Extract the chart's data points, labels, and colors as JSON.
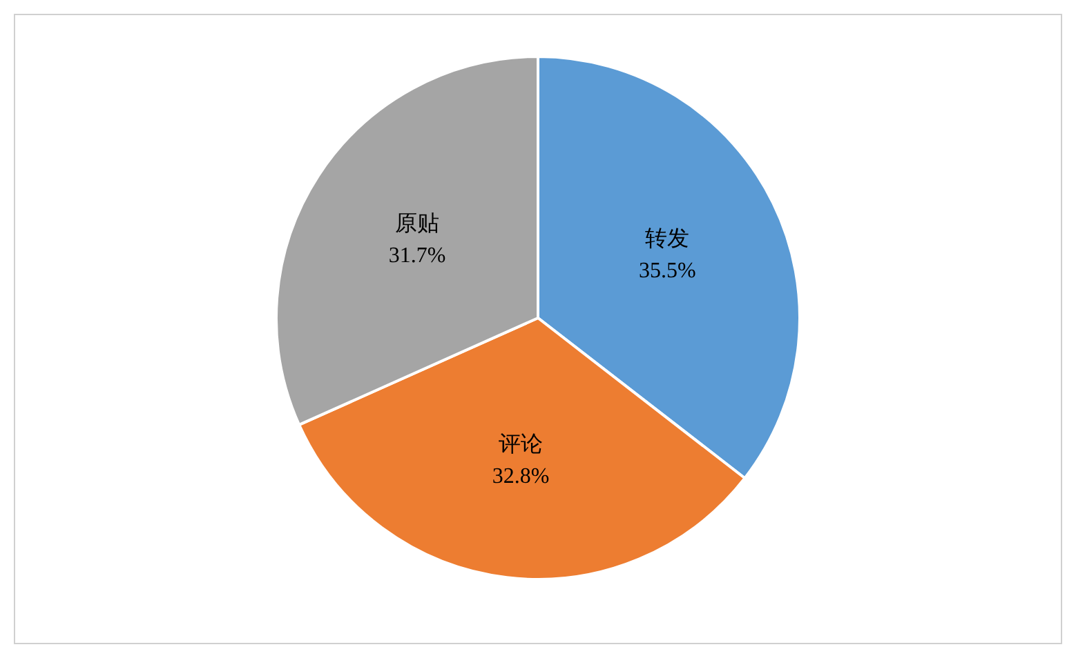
{
  "chart_data": {
    "type": "pie",
    "categories": [
      "转发",
      "评论",
      "原贴"
    ],
    "values": [
      35.5,
      32.8,
      31.7
    ],
    "value_labels": [
      "35.5%",
      "32.8%",
      "31.7%"
    ],
    "colors": [
      "#5b9bd5",
      "#ed7d31",
      "#a5a5a5"
    ],
    "legend": false
  }
}
